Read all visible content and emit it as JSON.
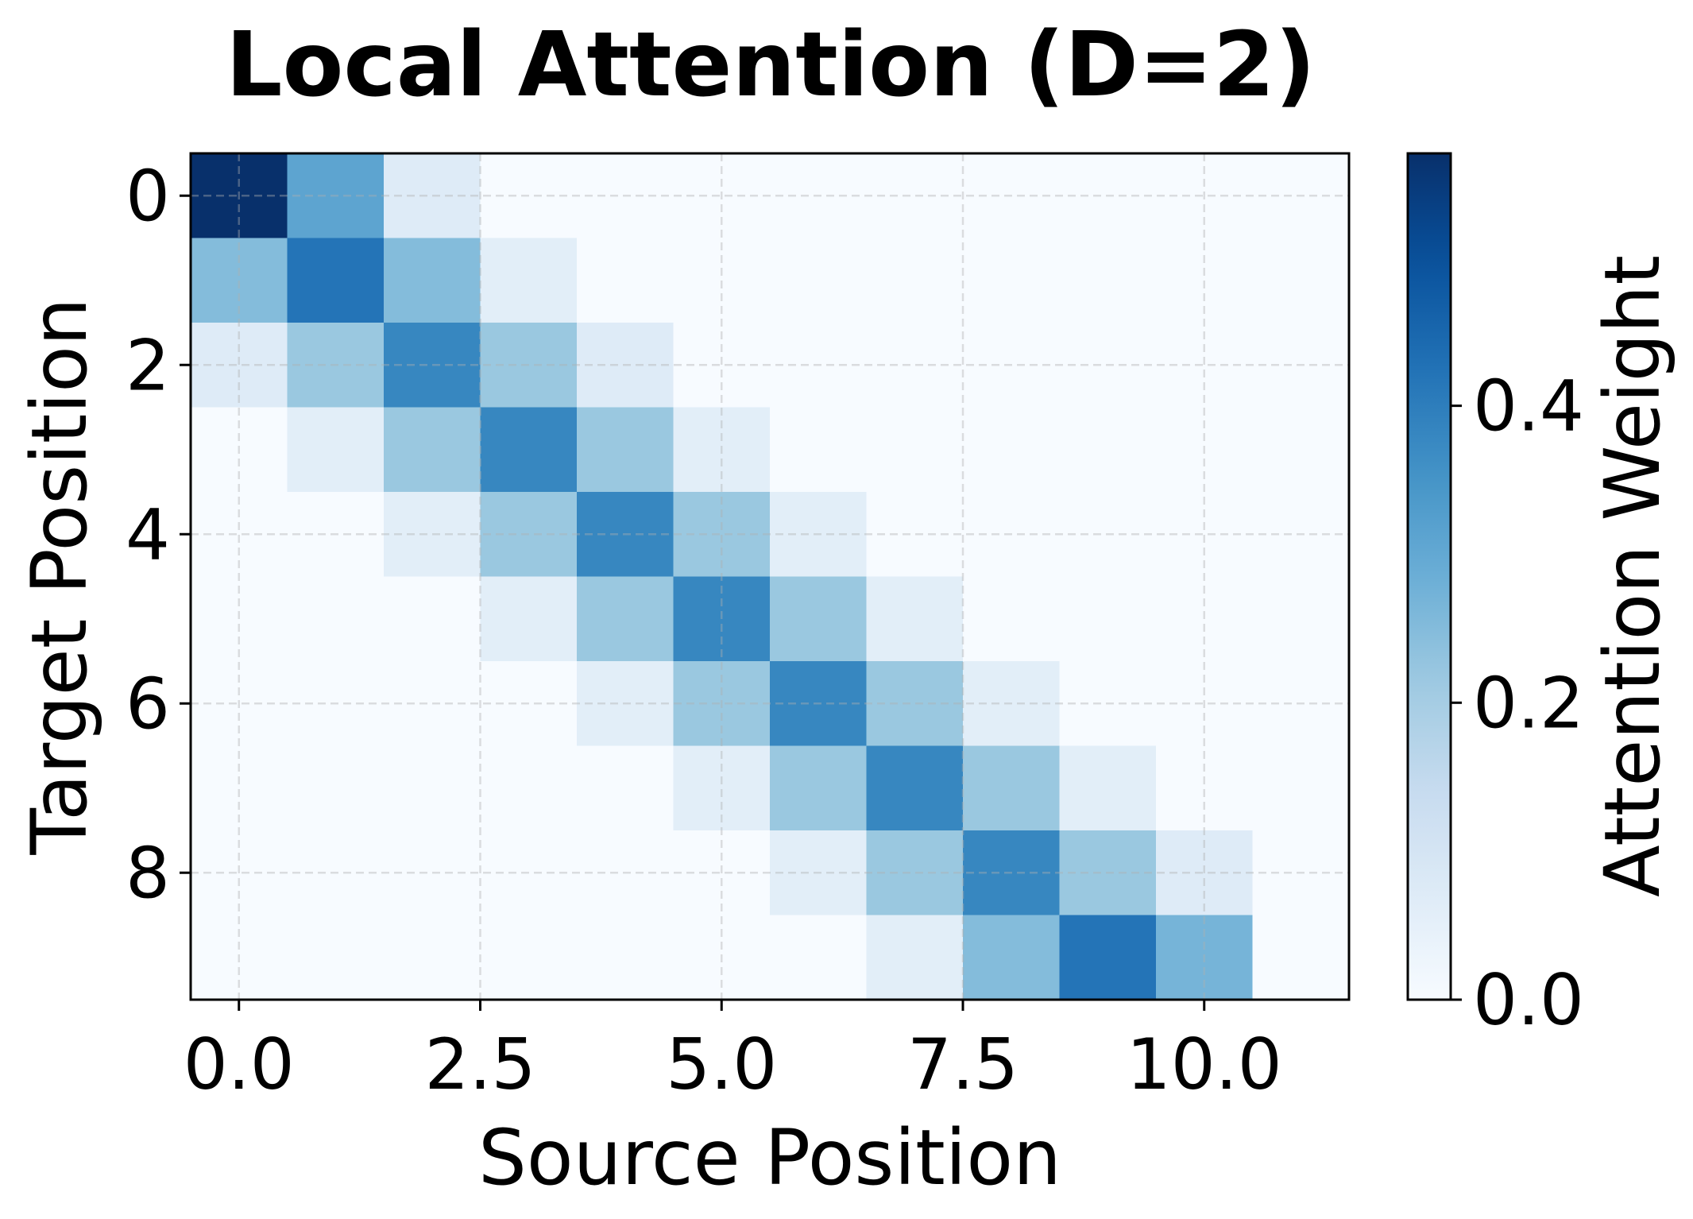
{
  "chart_data": {
    "type": "heatmap",
    "title": "Local Attention (D=2)",
    "xlabel": "Source Position",
    "ylabel": "Target Position",
    "colorbar_label": "Attention Weight",
    "colormap": "Blues",
    "vmin": 0.0,
    "vmax": 0.57,
    "xlim": [
      -0.5,
      11.5
    ],
    "ylim": [
      9.5,
      -0.5
    ],
    "xticks": [
      0.0,
      2.5,
      5.0,
      7.5,
      10.0
    ],
    "xtick_labels": [
      "0.0",
      "2.5",
      "5.0",
      "7.5",
      "10.0"
    ],
    "yticks": [
      0,
      2,
      4,
      6,
      8
    ],
    "ytick_labels": [
      "0",
      "2",
      "4",
      "6",
      "8"
    ],
    "colorbar_ticks": [
      0.0,
      0.2,
      0.4
    ],
    "colorbar_tick_labels": [
      "0.0",
      "0.2",
      "0.4"
    ],
    "grid": true,
    "values": [
      [
        0.57,
        0.31,
        0.07,
        0,
        0,
        0,
        0,
        0,
        0,
        0,
        0,
        0
      ],
      [
        0.25,
        0.42,
        0.25,
        0.06,
        0,
        0,
        0,
        0,
        0,
        0,
        0,
        0
      ],
      [
        0.07,
        0.22,
        0.38,
        0.22,
        0.07,
        0,
        0,
        0,
        0,
        0,
        0,
        0
      ],
      [
        0,
        0.06,
        0.22,
        0.38,
        0.22,
        0.06,
        0,
        0,
        0,
        0,
        0,
        0
      ],
      [
        0,
        0,
        0.06,
        0.22,
        0.38,
        0.22,
        0.06,
        0,
        0,
        0,
        0,
        0
      ],
      [
        0,
        0,
        0,
        0.06,
        0.22,
        0.38,
        0.22,
        0.06,
        0,
        0,
        0,
        0
      ],
      [
        0,
        0,
        0,
        0,
        0.06,
        0.22,
        0.38,
        0.22,
        0.06,
        0,
        0,
        0
      ],
      [
        0,
        0,
        0,
        0,
        0,
        0.06,
        0.22,
        0.38,
        0.22,
        0.06,
        0,
        0
      ],
      [
        0,
        0,
        0,
        0,
        0,
        0,
        0.06,
        0.22,
        0.38,
        0.22,
        0.07,
        0
      ],
      [
        0,
        0,
        0,
        0,
        0,
        0,
        0,
        0.06,
        0.25,
        0.42,
        0.27,
        0
      ]
    ]
  }
}
